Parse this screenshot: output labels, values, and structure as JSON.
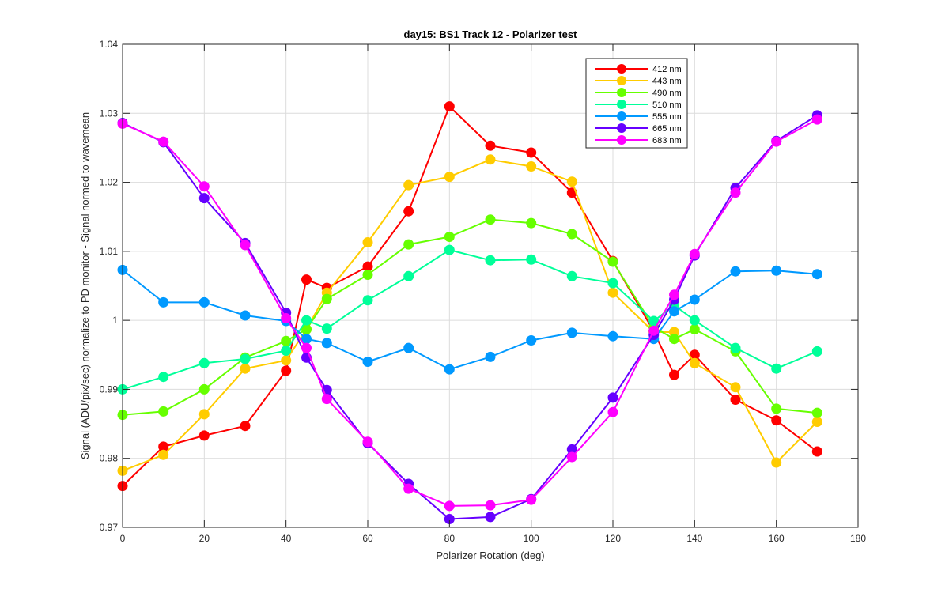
{
  "chart_data": {
    "type": "line",
    "title": "day15: BS1  Track 12 - Polarizer test",
    "xlabel": "Polarizer Rotation (deg)",
    "ylabel": "Signal (ADU/pix/sec) normalize to PD monitor - Signal normed to wavemean",
    "xlim": [
      0,
      180
    ],
    "ylim": [
      0.97,
      1.04
    ],
    "xticks": [
      0,
      20,
      40,
      60,
      80,
      100,
      120,
      140,
      160,
      180
    ],
    "xtick_labels": [
      "0",
      "20",
      "40",
      "60",
      "80",
      "100",
      "120",
      "140",
      "160",
      "180"
    ],
    "yticks": [
      0.97,
      0.98,
      0.99,
      1.0,
      1.01,
      1.02,
      1.03,
      1.04
    ],
    "ytick_labels": [
      "0.97",
      "0.98",
      "0.99",
      "1",
      "1.01",
      "1.02",
      "1.03",
      "1.04"
    ],
    "grid": true,
    "legend_position": "top-right",
    "x": [
      0,
      10,
      20,
      30,
      40,
      45,
      50,
      60,
      70,
      80,
      90,
      100,
      110,
      120,
      130,
      135,
      140,
      150,
      160,
      170
    ],
    "series": [
      {
        "name": "412 nm",
        "color": "#ff0000",
        "values": [
          0.976,
          0.9817,
          0.9833,
          0.9847,
          0.9927,
          1.0059,
          1.0047,
          1.0078,
          1.0158,
          1.031,
          1.0253,
          1.0243,
          1.0185,
          1.0086,
          0.9984,
          0.9921,
          0.995,
          0.9885,
          0.9855,
          0.981
        ]
      },
      {
        "name": "443 nm",
        "color": "#ffcc00",
        "values": [
          0.9782,
          0.9805,
          0.9864,
          0.993,
          0.9942,
          0.9987,
          1.004,
          1.0113,
          1.0196,
          1.0208,
          1.0233,
          1.0223,
          1.0201,
          1.004,
          0.9983,
          0.9983,
          0.9938,
          0.9903,
          0.9794,
          0.9853
        ]
      },
      {
        "name": "490 nm",
        "color": "#66ff00",
        "values": [
          0.9863,
          0.9868,
          0.99,
          0.9946,
          0.997,
          0.9987,
          1.0031,
          1.0066,
          1.011,
          1.0121,
          1.0146,
          1.0141,
          1.0125,
          1.0085,
          0.999,
          0.9973,
          0.9987,
          0.9955,
          0.9872,
          0.9866
        ]
      },
      {
        "name": "510 nm",
        "color": "#00ff99",
        "values": [
          0.99,
          0.9918,
          0.9938,
          0.9944,
          0.9956,
          1.0,
          0.9988,
          1.0029,
          1.0064,
          1.0102,
          1.0087,
          1.0088,
          1.0064,
          1.0054,
          0.9999,
          1.0022,
          1.0,
          0.996,
          0.993,
          0.9955
        ]
      },
      {
        "name": "555 nm",
        "color": "#0099ff",
        "values": [
          1.0073,
          1.0026,
          1.0026,
          1.0007,
          0.9999,
          0.9973,
          0.9967,
          0.994,
          0.996,
          0.9929,
          0.9947,
          0.9971,
          0.9982,
          0.9977,
          0.9973,
          1.0013,
          1.003,
          1.0071,
          1.0072,
          1.0067
        ]
      },
      {
        "name": "665 nm",
        "color": "#6600ff",
        "values": [
          1.0286,
          1.0258,
          1.0177,
          1.0112,
          1.0011,
          0.9946,
          0.9899,
          0.9822,
          0.9763,
          0.9712,
          0.9715,
          0.9741,
          0.9813,
          0.9888,
          0.9979,
          1.003,
          1.0094,
          1.0192,
          1.026,
          1.0297
        ]
      },
      {
        "name": "683 nm",
        "color": "#ff00ff",
        "values": [
          1.0285,
          1.0259,
          1.0194,
          1.0109,
          1.0003,
          0.996,
          0.9886,
          0.9824,
          0.9756,
          0.9731,
          0.9732,
          0.974,
          0.9802,
          0.9867,
          0.9985,
          1.0037,
          1.0096,
          1.0185,
          1.0259,
          1.0291
        ]
      }
    ]
  }
}
